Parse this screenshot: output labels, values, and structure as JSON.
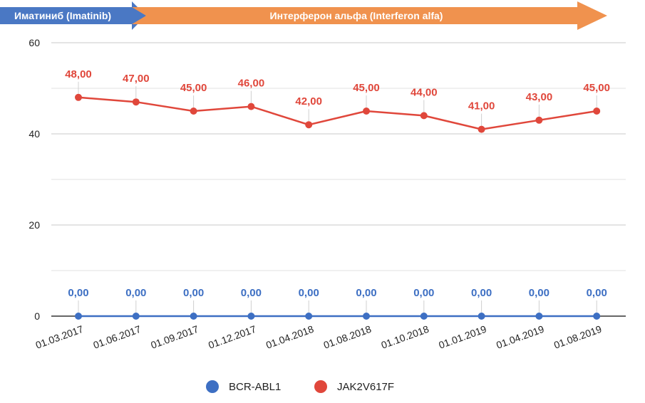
{
  "phases": [
    {
      "label": "Иматиниб (Imatinib)",
      "color": "#4a78c4"
    },
    {
      "label": "Интерферон альфа (Interferon alfa)",
      "color": "#f0924e"
    }
  ],
  "chart_data": {
    "type": "line",
    "title": "",
    "xlabel": "",
    "ylabel": "",
    "categories": [
      "01.03.2017",
      "01.06.2017",
      "01.09.2017",
      "01.12.2017",
      "01.04.2018",
      "01.08.2018",
      "01.10.2018",
      "01.01.2019",
      "01.04.2019",
      "01.08.2019"
    ],
    "ylim": [
      0,
      60
    ],
    "yticks": [
      0,
      20,
      40,
      60
    ],
    "grid": true,
    "legend_position": "bottom",
    "series": [
      {
        "name": "BCR-ABL1",
        "color": "#3d6fc3",
        "values": [
          0,
          0,
          0,
          0,
          0,
          0,
          0,
          0,
          0,
          0
        ],
        "labels": [
          "0,00",
          "0,00",
          "0,00",
          "0,00",
          "0,00",
          "0,00",
          "0,00",
          "0,00",
          "0,00",
          "0,00"
        ]
      },
      {
        "name": "JAK2V617F",
        "color": "#e0473b",
        "values": [
          48,
          47,
          45,
          46,
          42,
          45,
          44,
          41,
          43,
          45
        ],
        "labels": [
          "48,00",
          "47,00",
          "45,00",
          "46,00",
          "42,00",
          "45,00",
          "44,00",
          "41,00",
          "43,00",
          "45,00"
        ]
      }
    ]
  }
}
